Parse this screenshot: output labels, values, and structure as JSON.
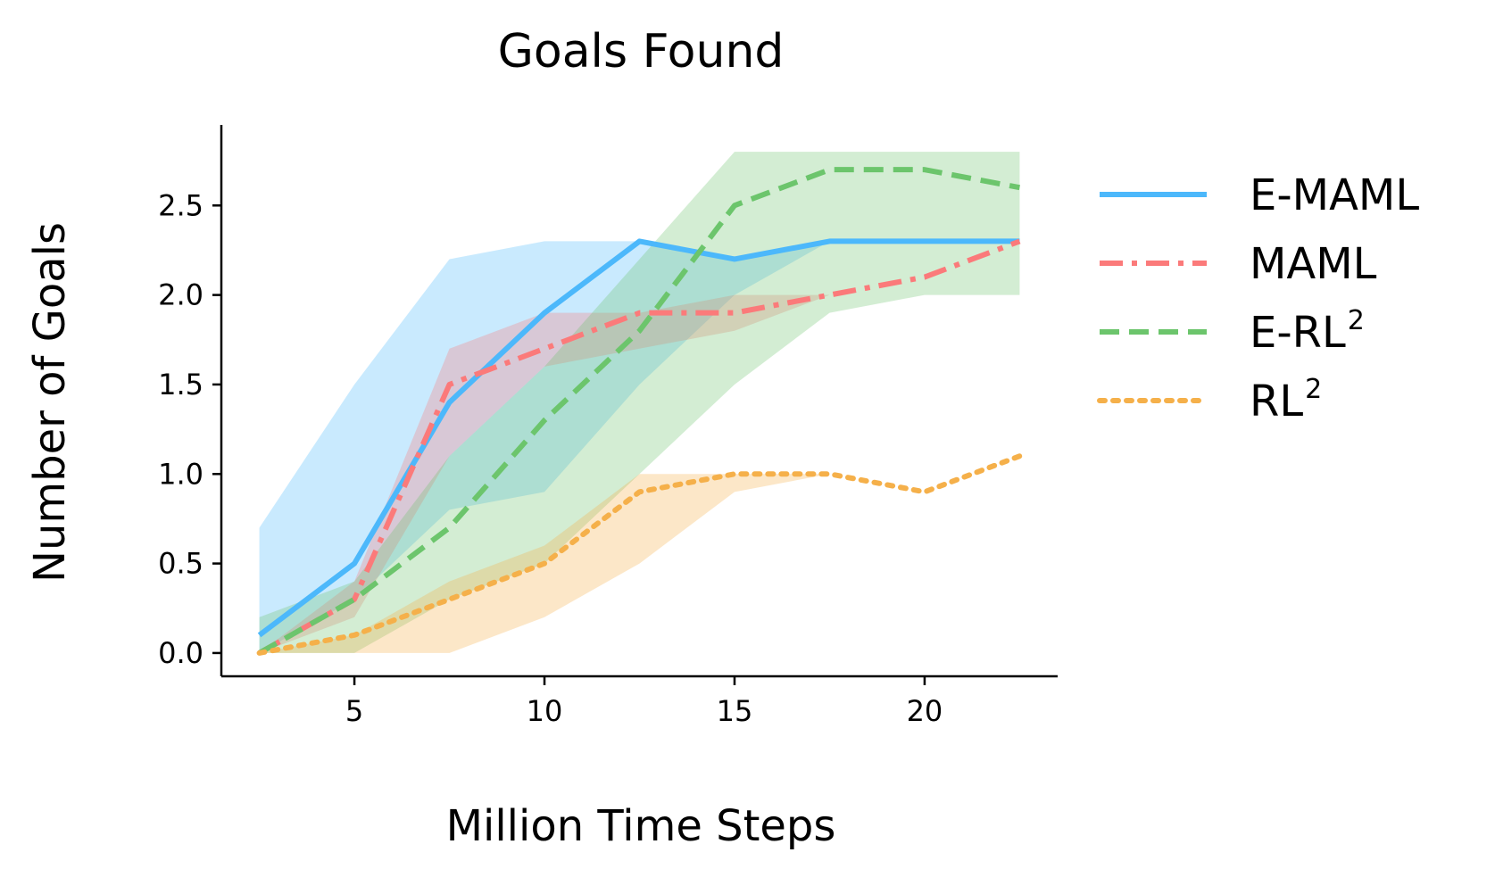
{
  "chart_data": {
    "type": "line",
    "title": "Goals Found",
    "xlabel": "Million Time Steps",
    "ylabel": "Number of Goals",
    "xlim": [
      1.5,
      23.5
    ],
    "ylim": [
      -0.13,
      2.95
    ],
    "xticks": [
      5,
      10,
      15,
      20
    ],
    "yticks": [
      0.0,
      0.5,
      1.0,
      1.5,
      2.0,
      2.5
    ],
    "xtick_labels": [
      "5",
      "10",
      "15",
      "20"
    ],
    "ytick_labels": [
      "0.0",
      "0.5",
      "1.0",
      "1.5",
      "2.0",
      "2.5"
    ],
    "grid": false,
    "legend_position": "right, outside plot",
    "x": [
      2.5,
      5,
      7.5,
      10,
      12.5,
      15,
      17.5,
      20,
      22.5
    ],
    "series": [
      {
        "name": "E-MAML",
        "name_base": "E-MAML",
        "name_sup": "",
        "color": "#4cb8fb",
        "style": "solid",
        "values": [
          0.1,
          0.5,
          1.4,
          1.9,
          2.3,
          2.2,
          2.3,
          2.3,
          2.3
        ],
        "band_low": [
          0.0,
          0.3,
          0.8,
          0.9,
          1.5,
          2.0,
          2.3,
          2.3,
          2.3
        ],
        "band_high": [
          0.7,
          1.5,
          2.2,
          2.3,
          2.3,
          2.2,
          2.3,
          2.3,
          2.3
        ]
      },
      {
        "name": "MAML",
        "name_base": "MAML",
        "name_sup": "",
        "color": "#fb7a7a",
        "style": "dashdot",
        "values": [
          0.0,
          0.3,
          1.5,
          1.7,
          1.9,
          1.9,
          2.0,
          2.1,
          2.3
        ],
        "band_low": [
          0.0,
          0.2,
          1.1,
          1.6,
          1.7,
          1.8,
          2.0,
          2.1,
          2.3
        ],
        "band_high": [
          0.0,
          0.4,
          1.7,
          1.9,
          1.9,
          2.0,
          2.0,
          2.1,
          2.3
        ]
      },
      {
        "name": "E-RL2",
        "name_base": "E-RL",
        "name_sup": "2",
        "color": "#6cc56c",
        "style": "dashed",
        "values": [
          0.0,
          0.3,
          0.7,
          1.3,
          1.8,
          2.5,
          2.7,
          2.7,
          2.6
        ],
        "band_low": [
          0.0,
          0.0,
          0.3,
          0.5,
          1.0,
          1.5,
          1.9,
          2.0,
          2.0
        ],
        "band_high": [
          0.2,
          0.4,
          1.1,
          1.6,
          2.2,
          2.8,
          2.8,
          2.8,
          2.8
        ]
      },
      {
        "name": "RL2",
        "name_base": "RL",
        "name_sup": "2",
        "color": "#f5b04a",
        "style": "dotted",
        "values": [
          0.0,
          0.1,
          0.3,
          0.5,
          0.9,
          1.0,
          1.0,
          0.9,
          1.1
        ],
        "band_low": [
          0.0,
          0.0,
          0.0,
          0.2,
          0.5,
          0.9,
          1.0,
          0.9,
          1.1
        ],
        "band_high": [
          0.0,
          0.1,
          0.4,
          0.6,
          1.0,
          1.0,
          1.0,
          0.9,
          1.1
        ]
      }
    ]
  }
}
